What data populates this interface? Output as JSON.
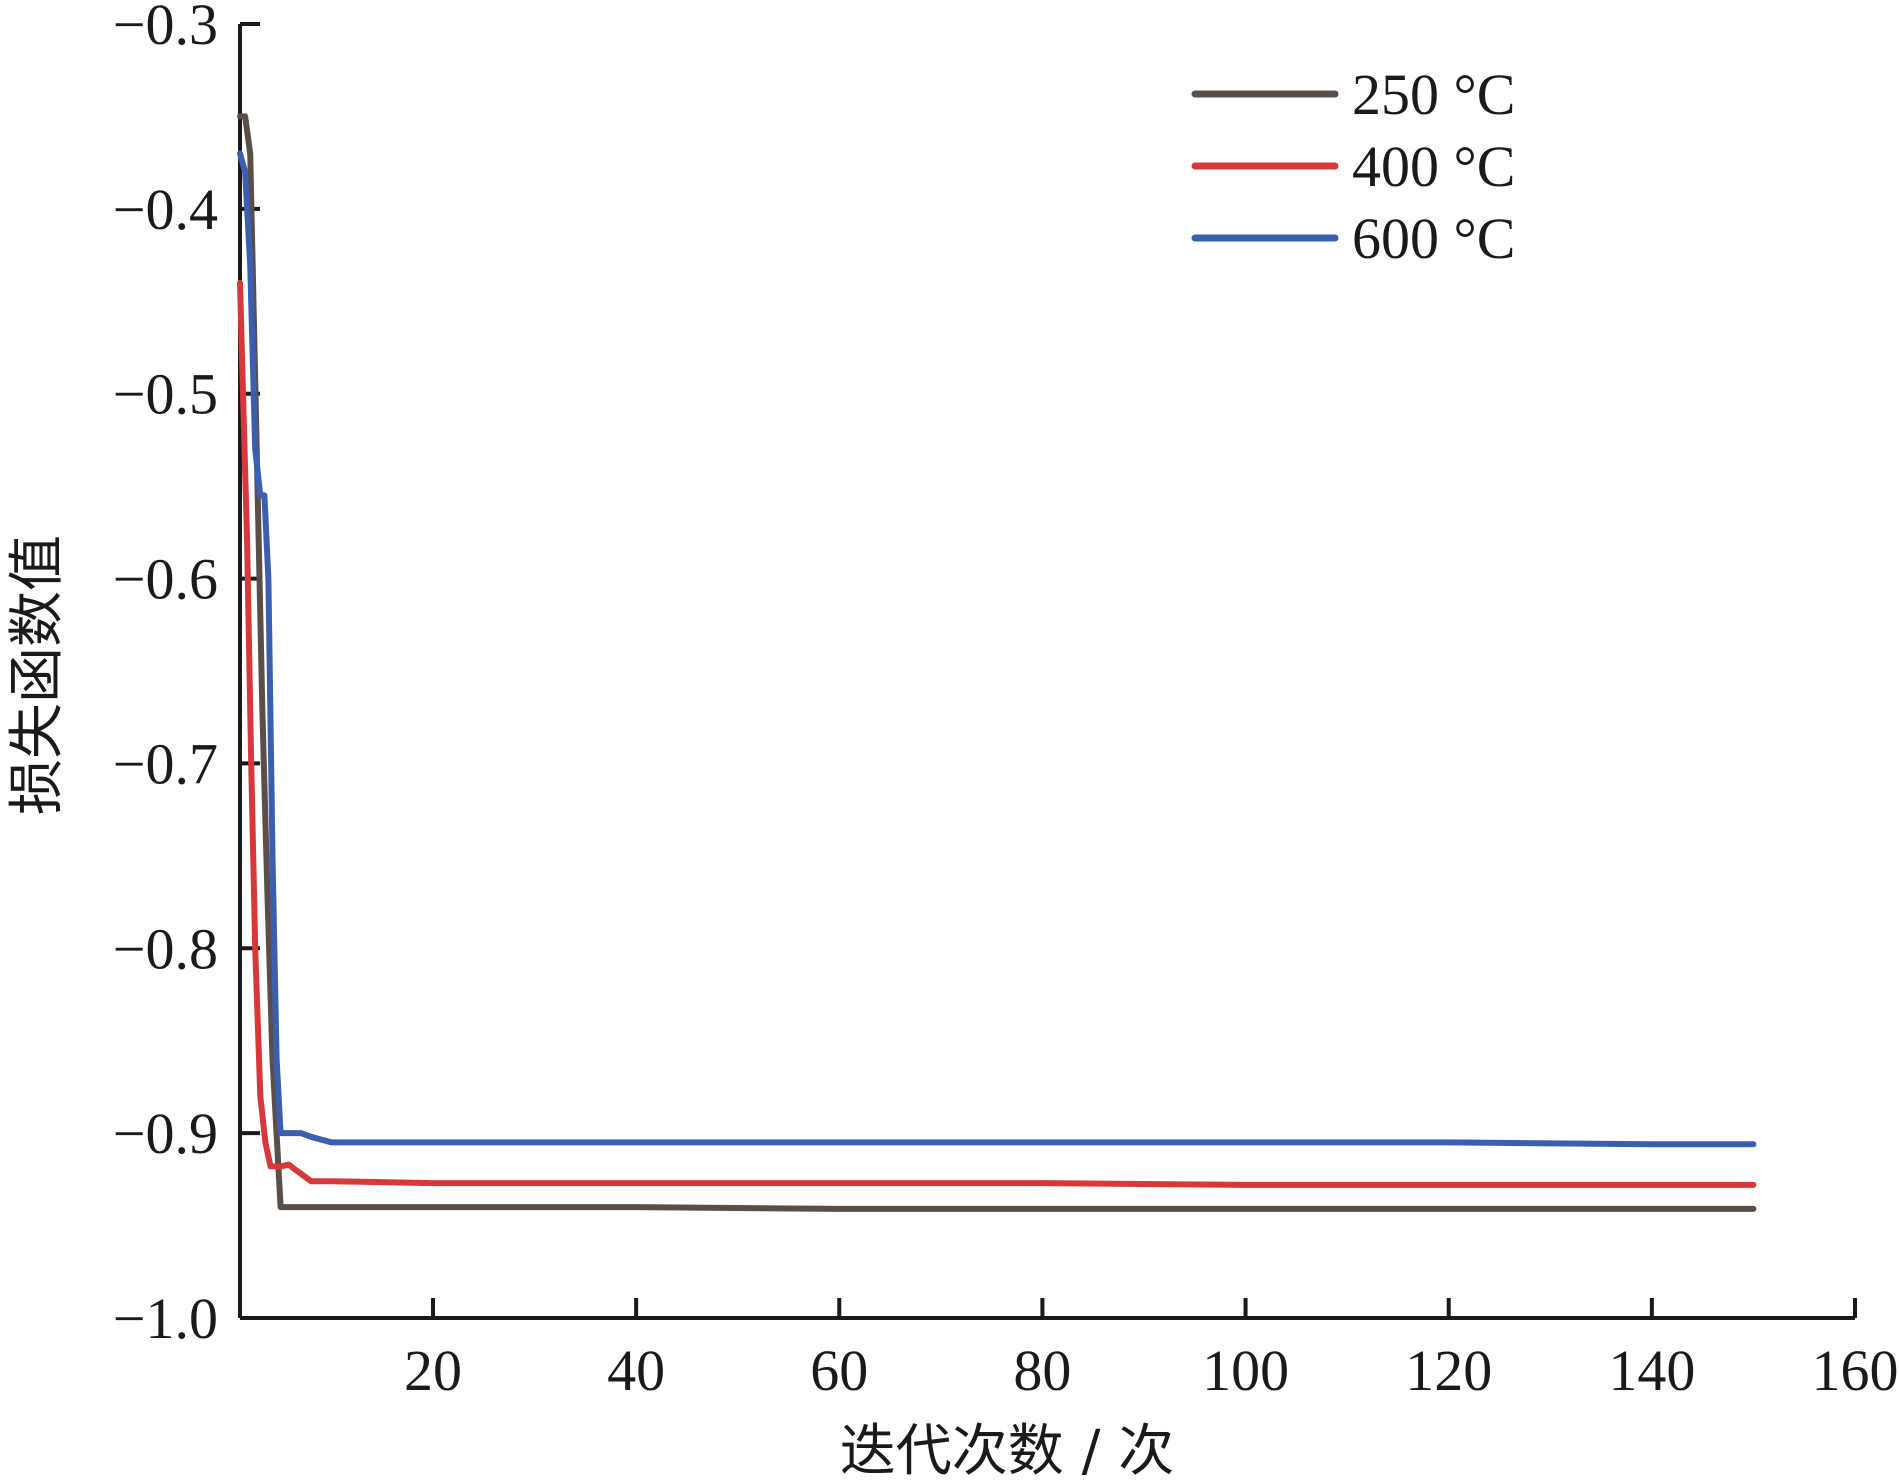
{
  "chart_data": {
    "type": "line",
    "title": "",
    "xlabel": "迭代次数 / 次",
    "ylabel": "损失函数值",
    "xlim": [
      1,
      160
    ],
    "ylim": [
      -1.0,
      -0.3
    ],
    "x_ticks": [
      20,
      40,
      60,
      80,
      100,
      120,
      140,
      160
    ],
    "y_ticks": [
      -0.3,
      -0.4,
      -0.5,
      -0.6,
      -0.7,
      -0.8,
      -0.9,
      -1.0
    ],
    "x_tick_labels": [
      "20",
      "40",
      "60",
      "80",
      "100",
      "120",
      "140",
      "160"
    ],
    "y_tick_labels": [
      "−0.3",
      "−0.4",
      "−0.5",
      "−0.6",
      "−0.7",
      "−0.8",
      "−0.9",
      "−1.0"
    ],
    "legend_position": "top-right",
    "grid": false,
    "series": [
      {
        "name": "250 °C",
        "color": "#5a4e4a",
        "x": [
          1,
          1.5,
          2,
          2.6,
          3.2,
          3.7,
          4.2,
          5,
          7,
          10,
          20,
          40,
          60,
          80,
          100,
          120,
          140,
          150
        ],
        "y": [
          -0.35,
          -0.35,
          -0.37,
          -0.52,
          -0.67,
          -0.77,
          -0.86,
          -0.94,
          -0.94,
          -0.94,
          -0.94,
          -0.94,
          -0.941,
          -0.941,
          -0.941,
          -0.941,
          -0.941,
          -0.941
        ]
      },
      {
        "name": "400 °C",
        "color": "#d9383a",
        "x": [
          1,
          1.3,
          1.7,
          2.1,
          2.5,
          3,
          3.5,
          4,
          5,
          5.8,
          6.5,
          8,
          10,
          20,
          40,
          60,
          80,
          100,
          120,
          140,
          150
        ],
        "y": [
          -0.44,
          -0.5,
          -0.58,
          -0.7,
          -0.8,
          -0.88,
          -0.905,
          -0.918,
          -0.918,
          -0.917,
          -0.92,
          -0.926,
          -0.926,
          -0.927,
          -0.927,
          -0.927,
          -0.927,
          -0.928,
          -0.928,
          -0.928,
          -0.928
        ]
      },
      {
        "name": "600 °C",
        "color": "#3a5fb0",
        "x": [
          1,
          1.5,
          2,
          2.5,
          3,
          3.4,
          3.8,
          4.2,
          4.6,
          5,
          7,
          8,
          10,
          20,
          40,
          60,
          80,
          100,
          120,
          140,
          150
        ],
        "y": [
          -0.37,
          -0.38,
          -0.43,
          -0.53,
          -0.555,
          -0.555,
          -0.6,
          -0.75,
          -0.86,
          -0.9,
          -0.9,
          -0.902,
          -0.905,
          -0.905,
          -0.905,
          -0.905,
          -0.905,
          -0.905,
          -0.905,
          -0.906,
          -0.906
        ]
      }
    ]
  }
}
